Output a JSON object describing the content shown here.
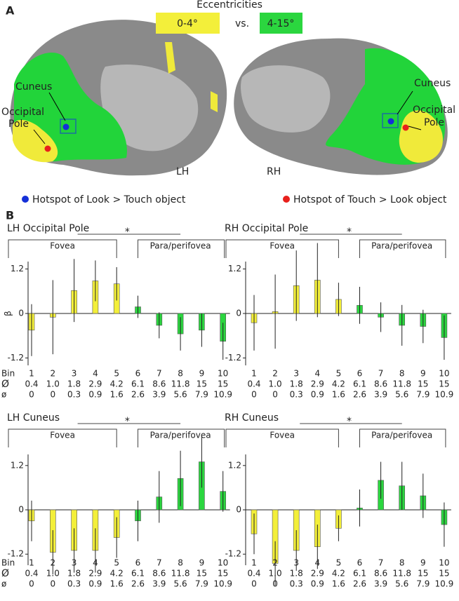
{
  "panel_a": {
    "label": "A",
    "legend_title": "Eccentricities",
    "range_central": "0-4°",
    "versus": "vs.",
    "range_peripheral": "4-15°",
    "left_cuneus": "Cuneus",
    "left_occipital_pole": [
      "Occipital",
      "Pole"
    ],
    "right_cuneus": "Cuneus",
    "right_occipital_pole": [
      "Occipital",
      "Pole"
    ],
    "left_hemisphere": "LH",
    "right_hemisphere": "RH",
    "hotspot_look": "Hotspot of Look > Touch object",
    "hotspot_touch": "Hotspot of Touch > Look object"
  },
  "panel_b_label": "B",
  "chart_data": [
    {
      "type": "bar",
      "title": "LH Occipital Pole",
      "y_label": "β",
      "fovea_label": "Fovea",
      "para_label": "Para/perifovea",
      "significance": "*",
      "categories": [
        "1",
        "2",
        "3",
        "4",
        "5",
        "6",
        "7",
        "8",
        "9",
        "10"
      ],
      "values": [
        -0.45,
        -0.1,
        0.62,
        0.88,
        0.8,
        0.18,
        -0.32,
        -0.55,
        -0.45,
        -0.75
      ],
      "errors": [
        0.7,
        1.0,
        0.85,
        0.55,
        0.45,
        0.3,
        0.35,
        0.45,
        0.45,
        0.5
      ],
      "colors": [
        "#f3ef3a",
        "#f3ef3a",
        "#f3ef3a",
        "#f3ef3a",
        "#f3ef3a",
        "#2bd63f",
        "#2bd63f",
        "#2bd63f",
        "#2bd63f",
        "#2bd63f"
      ],
      "ylim": [
        -1.4,
        1.4
      ],
      "yticks": [
        1.2,
        0,
        -1.2
      ],
      "row_labels": [
        "Bin",
        "Ø",
        "ø"
      ],
      "rows": [
        [
          "0.4",
          "1.0",
          "1.8",
          "2.9",
          "4.2",
          "6.1",
          "8.6",
          "11.8",
          "15",
          "15"
        ],
        [
          "0",
          "0",
          "0.3",
          "0.9",
          "1.6",
          "2.6",
          "3.9",
          "5.6",
          "7.9",
          "10.9"
        ]
      ]
    },
    {
      "type": "bar",
      "title": "RH Occipital Pole",
      "fovea_label": "Fovea",
      "para_label": "Para/perifovea",
      "significance": "*",
      "categories": [
        "1",
        "2",
        "3",
        "4",
        "5",
        "6",
        "7",
        "8",
        "9",
        "10"
      ],
      "values": [
        -0.25,
        0.05,
        0.75,
        0.9,
        0.38,
        0.22,
        -0.1,
        -0.32,
        -0.35,
        -0.65
      ],
      "errors": [
        0.75,
        1.0,
        0.95,
        1.0,
        0.45,
        0.5,
        0.4,
        0.55,
        0.45,
        0.6
      ],
      "colors": [
        "#f3ef3a",
        "#f3ef3a",
        "#f3ef3a",
        "#f3ef3a",
        "#f3ef3a",
        "#2bd63f",
        "#2bd63f",
        "#2bd63f",
        "#2bd63f",
        "#2bd63f"
      ],
      "ylim": [
        -1.4,
        1.4
      ],
      "yticks": [
        1.2,
        0,
        -1.2
      ],
      "rows": [
        [
          "0.4",
          "1.0",
          "1.8",
          "2.9",
          "4.2",
          "6.1",
          "8.6",
          "11.8",
          "15",
          "15"
        ],
        [
          "0",
          "0",
          "0.3",
          "0.9",
          "1.6",
          "2.6",
          "3.9",
          "5.6",
          "7.9",
          "10.9"
        ]
      ]
    },
    {
      "type": "bar",
      "title": "LH Cuneus",
      "fovea_label": "Fovea",
      "para_label": "Para/perifovea",
      "significance": "*",
      "categories": [
        "1",
        "2",
        "3",
        "4",
        "5",
        "6",
        "7",
        "8",
        "9",
        "10"
      ],
      "values": [
        -0.3,
        -1.15,
        -1.1,
        -1.1,
        -0.75,
        -0.3,
        0.35,
        0.85,
        1.3,
        0.5
      ],
      "errors": [
        0.55,
        0.6,
        0.6,
        0.6,
        0.55,
        0.55,
        0.7,
        0.75,
        0.7,
        0.55
      ],
      "colors": [
        "#f3ef3a",
        "#f3ef3a",
        "#f3ef3a",
        "#f3ef3a",
        "#f3ef3a",
        "#2bd63f",
        "#2bd63f",
        "#2bd63f",
        "#2bd63f",
        "#2bd63f"
      ],
      "ylim": [
        -1.5,
        1.5
      ],
      "yticks": [
        1.2,
        0,
        -1.2
      ],
      "row_labels": [
        "Bin",
        "Ø",
        "ø"
      ],
      "rows": [
        [
          "0.4",
          "1.0",
          "1.8",
          "2.9",
          "4.2",
          "6.1",
          "8.6",
          "11.8",
          "15",
          "15"
        ],
        [
          "0",
          "0",
          "0.3",
          "0.9",
          "1.6",
          "2.6",
          "3.9",
          "5.6",
          "7.9",
          "10.9"
        ]
      ]
    },
    {
      "type": "bar",
      "title": "RH Cuneus",
      "fovea_label": "Fovea",
      "para_label": "Para/perifovea",
      "significance": "*",
      "categories": [
        "1",
        "2",
        "3",
        "4",
        "5",
        "6",
        "7",
        "8",
        "9",
        "10"
      ],
      "values": [
        -0.65,
        -1.45,
        -1.1,
        -1.0,
        -0.5,
        0.05,
        0.8,
        0.65,
        0.38,
        -0.4
      ],
      "errors": [
        0.55,
        0.6,
        0.55,
        0.6,
        0.35,
        0.5,
        0.5,
        0.65,
        0.6,
        0.6
      ],
      "colors": [
        "#f3ef3a",
        "#f3ef3a",
        "#f3ef3a",
        "#f3ef3a",
        "#f3ef3a",
        "#2bd63f",
        "#2bd63f",
        "#2bd63f",
        "#2bd63f",
        "#2bd63f"
      ],
      "ylim": [
        -1.5,
        1.5
      ],
      "yticks": [
        1.2,
        0,
        -1.2
      ],
      "rows": [
        [
          "0.4",
          "1.0",
          "1.8",
          "2.9",
          "4.2",
          "6.1",
          "8.6",
          "11.8",
          "15",
          "15"
        ],
        [
          "0",
          "0",
          "0.3",
          "0.9",
          "1.6",
          "2.6",
          "3.9",
          "5.6",
          "7.9",
          "10.9"
        ]
      ]
    }
  ]
}
